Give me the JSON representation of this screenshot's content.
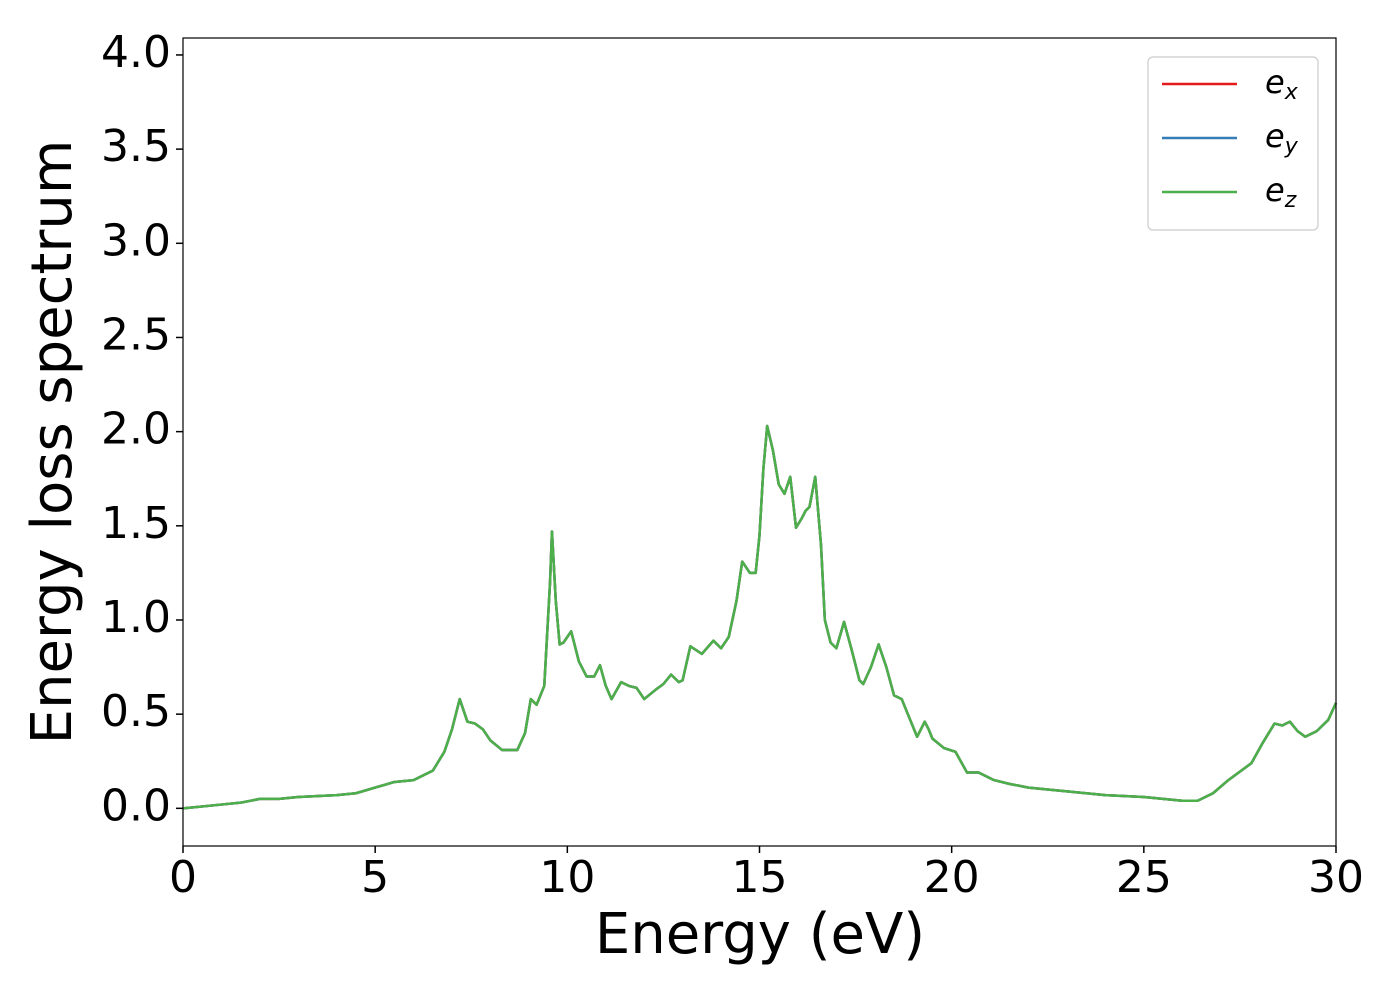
{
  "chart_data": {
    "type": "line",
    "xlabel": "Energy (eV)",
    "ylabel": "Energy loss spectrum",
    "x": [
      0,
      1,
      1.5,
      2,
      2.5,
      3,
      4,
      4.5,
      5,
      5.5,
      6,
      6.5,
      6.8,
      7.0,
      7.2,
      7.4,
      7.6,
      7.8,
      8.0,
      8.3,
      8.7,
      8.9,
      9.05,
      9.2,
      9.4,
      9.55,
      9.6,
      9.7,
      9.8,
      9.9,
      10.1,
      10.3,
      10.5,
      10.7,
      10.85,
      11.0,
      11.15,
      11.4,
      11.6,
      11.8,
      12.0,
      12.3,
      12.5,
      12.7,
      12.9,
      13.0,
      13.2,
      13.5,
      13.8,
      14.0,
      14.2,
      14.4,
      14.55,
      14.75,
      14.9,
      15.0,
      15.1,
      15.2,
      15.35,
      15.5,
      15.65,
      15.8,
      15.95,
      16.1,
      16.2,
      16.3,
      16.45,
      16.6,
      16.7,
      16.85,
      17.0,
      17.2,
      17.4,
      17.6,
      17.7,
      17.9,
      18.1,
      18.3,
      18.5,
      18.7,
      18.9,
      19.1,
      19.3,
      19.4,
      19.5,
      19.8,
      20.1,
      20.4,
      20.7,
      21.1,
      21.5,
      22,
      22.5,
      23,
      24,
      25,
      26,
      26.4,
      26.8,
      27.2,
      27.8,
      28.1,
      28.4,
      28.6,
      28.8,
      29.0,
      29.2,
      29.5,
      29.8,
      30
    ],
    "series": [
      {
        "name": "ex",
        "color": "#e41a1c",
        "values": [
          0.0,
          0.02,
          0.03,
          0.05,
          0.05,
          0.06,
          0.07,
          0.08,
          0.11,
          0.14,
          0.15,
          0.2,
          0.3,
          0.42,
          0.58,
          0.46,
          0.45,
          0.42,
          0.36,
          0.31,
          0.31,
          0.4,
          0.58,
          0.55,
          0.65,
          1.2,
          1.47,
          1.1,
          0.87,
          0.88,
          0.94,
          0.78,
          0.7,
          0.7,
          0.76,
          0.65,
          0.58,
          0.67,
          0.65,
          0.64,
          0.58,
          0.63,
          0.66,
          0.71,
          0.67,
          0.68,
          0.86,
          0.82,
          0.89,
          0.85,
          0.91,
          1.1,
          1.31,
          1.25,
          1.25,
          1.45,
          1.8,
          2.03,
          1.9,
          1.72,
          1.67,
          1.76,
          1.49,
          1.54,
          1.58,
          1.6,
          1.76,
          1.4,
          1.0,
          0.88,
          0.85,
          0.99,
          0.84,
          0.68,
          0.66,
          0.75,
          0.87,
          0.75,
          0.6,
          0.58,
          0.48,
          0.38,
          0.46,
          0.42,
          0.37,
          0.32,
          0.3,
          0.19,
          0.19,
          0.15,
          0.13,
          0.11,
          0.1,
          0.09,
          0.07,
          0.06,
          0.04,
          0.04,
          0.08,
          0.15,
          0.24,
          0.35,
          0.45,
          0.44,
          0.46,
          0.41,
          0.38,
          0.41,
          0.47,
          0.56
        ]
      },
      {
        "name": "ey",
        "color": "#377eb8",
        "values": [
          0.0,
          0.02,
          0.03,
          0.05,
          0.05,
          0.06,
          0.07,
          0.08,
          0.11,
          0.14,
          0.15,
          0.2,
          0.3,
          0.42,
          0.58,
          0.46,
          0.45,
          0.42,
          0.36,
          0.31,
          0.31,
          0.4,
          0.58,
          0.55,
          0.65,
          1.2,
          1.47,
          1.1,
          0.87,
          0.88,
          0.94,
          0.78,
          0.7,
          0.7,
          0.76,
          0.65,
          0.58,
          0.67,
          0.65,
          0.64,
          0.58,
          0.63,
          0.66,
          0.71,
          0.67,
          0.68,
          0.86,
          0.82,
          0.89,
          0.85,
          0.91,
          1.1,
          1.31,
          1.25,
          1.25,
          1.45,
          1.8,
          2.03,
          1.9,
          1.72,
          1.67,
          1.76,
          1.49,
          1.54,
          1.58,
          1.6,
          1.76,
          1.4,
          1.0,
          0.88,
          0.85,
          0.99,
          0.84,
          0.68,
          0.66,
          0.75,
          0.87,
          0.75,
          0.6,
          0.58,
          0.48,
          0.38,
          0.46,
          0.42,
          0.37,
          0.32,
          0.3,
          0.19,
          0.19,
          0.15,
          0.13,
          0.11,
          0.1,
          0.09,
          0.07,
          0.06,
          0.04,
          0.04,
          0.08,
          0.15,
          0.24,
          0.35,
          0.45,
          0.44,
          0.46,
          0.41,
          0.38,
          0.41,
          0.47,
          0.56
        ]
      },
      {
        "name": "ez",
        "color": "#4daf4a",
        "values": [
          0.0,
          0.02,
          0.03,
          0.05,
          0.05,
          0.06,
          0.07,
          0.08,
          0.11,
          0.14,
          0.15,
          0.2,
          0.3,
          0.42,
          0.58,
          0.46,
          0.45,
          0.42,
          0.36,
          0.31,
          0.31,
          0.4,
          0.58,
          0.55,
          0.65,
          1.2,
          1.47,
          1.1,
          0.87,
          0.88,
          0.94,
          0.78,
          0.7,
          0.7,
          0.76,
          0.65,
          0.58,
          0.67,
          0.65,
          0.64,
          0.58,
          0.63,
          0.66,
          0.71,
          0.67,
          0.68,
          0.86,
          0.82,
          0.89,
          0.85,
          0.91,
          1.1,
          1.31,
          1.25,
          1.25,
          1.45,
          1.8,
          2.03,
          1.9,
          1.72,
          1.67,
          1.76,
          1.49,
          1.54,
          1.58,
          1.6,
          1.76,
          1.4,
          1.0,
          0.88,
          0.85,
          0.99,
          0.84,
          0.68,
          0.66,
          0.75,
          0.87,
          0.75,
          0.6,
          0.58,
          0.48,
          0.38,
          0.46,
          0.42,
          0.37,
          0.32,
          0.3,
          0.19,
          0.19,
          0.15,
          0.13,
          0.11,
          0.1,
          0.09,
          0.07,
          0.06,
          0.04,
          0.04,
          0.08,
          0.15,
          0.24,
          0.35,
          0.45,
          0.44,
          0.46,
          0.41,
          0.38,
          0.41,
          0.47,
          0.56
        ]
      }
    ],
    "xlim": [
      0,
      30
    ],
    "xticks": [
      0,
      5,
      10,
      15,
      20,
      25,
      30
    ],
    "ylim": [
      -0.2,
      4.09
    ],
    "yticks": [
      {
        "value": 0,
        "label": "0.0"
      },
      0.5,
      {
        "value": 1,
        "label": "1.0"
      },
      1.5,
      {
        "value": 2,
        "label": "2.0"
      },
      2.5,
      {
        "value": 3,
        "label": "3.0"
      },
      3.5,
      {
        "value": 4,
        "label": "4.0"
      }
    ],
    "grid": false,
    "legend": "upper right"
  }
}
